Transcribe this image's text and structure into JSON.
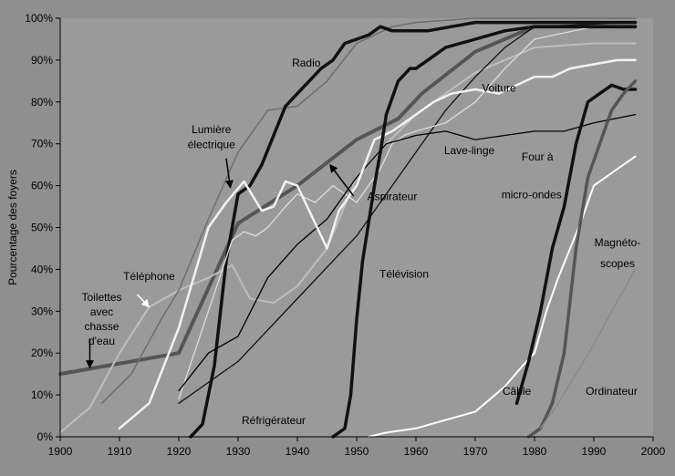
{
  "chart_data": {
    "type": "line",
    "title": "",
    "xlabel": "",
    "ylabel": "Pourcentage des foyers",
    "xlim": [
      1900,
      2000
    ],
    "ylim": [
      0,
      100
    ],
    "x_ticks": [
      "1900",
      "1910",
      "1920",
      "1930",
      "1940",
      "1950",
      "1960",
      "1970",
      "1980",
      "1990",
      "2000"
    ],
    "y_ticks": [
      "0%",
      "10%",
      "20%",
      "30%",
      "40%",
      "50%",
      "60%",
      "70%",
      "80%",
      "90%",
      "100%"
    ],
    "grid": false,
    "legend": "none",
    "series": [
      {
        "name": "Toilettes avec chasse d'eau",
        "color": "#555555",
        "width": 4,
        "points": [
          [
            1900,
            15
          ],
          [
            1920,
            20
          ],
          [
            1930,
            51
          ],
          [
            1940,
            60
          ],
          [
            1950,
            71
          ],
          [
            1957,
            76
          ],
          [
            1961,
            82
          ],
          [
            1970,
            92
          ],
          [
            1980,
            98
          ],
          [
            1997,
            98
          ]
        ]
      },
      {
        "name": "Téléphone",
        "color": "#bdbdbd",
        "width": 2,
        "points": [
          [
            1900,
            1
          ],
          [
            1905,
            7
          ],
          [
            1910,
            20
          ],
          [
            1915,
            31
          ],
          [
            1920,
            35
          ],
          [
            1925,
            38
          ],
          [
            1929,
            41
          ],
          [
            1932,
            33
          ],
          [
            1936,
            32
          ],
          [
            1940,
            36
          ],
          [
            1945,
            45
          ],
          [
            1950,
            62
          ],
          [
            1955,
            70
          ],
          [
            1960,
            77
          ],
          [
            1965,
            82
          ],
          [
            1970,
            87
          ],
          [
            1975,
            90
          ],
          [
            1980,
            93
          ],
          [
            1990,
            94
          ],
          [
            1997,
            94
          ]
        ]
      },
      {
        "name": "Lumière électrique",
        "color": "#6e6e6e",
        "width": 1.5,
        "points": [
          [
            1907,
            8
          ],
          [
            1912,
            15
          ],
          [
            1917,
            28
          ],
          [
            1920,
            35
          ],
          [
            1925,
            52
          ],
          [
            1930,
            68
          ],
          [
            1935,
            78
          ],
          [
            1940,
            79
          ],
          [
            1945,
            85
          ],
          [
            1950,
            94
          ],
          [
            1956,
            98
          ],
          [
            1960,
            99
          ],
          [
            1970,
            100
          ],
          [
            1997,
            100
          ]
        ]
      },
      {
        "name": "Radio",
        "color": "#111111",
        "width": 3.5,
        "points": [
          [
            1922,
            0
          ],
          [
            1924,
            3
          ],
          [
            1926,
            17
          ],
          [
            1928,
            42
          ],
          [
            1930,
            58
          ],
          [
            1932,
            60
          ],
          [
            1934,
            65
          ],
          [
            1936,
            72
          ],
          [
            1938,
            79
          ],
          [
            1940,
            82
          ],
          [
            1942,
            85
          ],
          [
            1944,
            88
          ],
          [
            1946,
            90
          ],
          [
            1948,
            94
          ],
          [
            1950,
            95
          ],
          [
            1952,
            96
          ],
          [
            1954,
            98
          ],
          [
            1956,
            97
          ],
          [
            1958,
            97
          ],
          [
            1962,
            97
          ],
          [
            1966,
            98
          ],
          [
            1970,
            99
          ],
          [
            1997,
            99
          ]
        ]
      },
      {
        "name": "Réfrigérateur",
        "color": "#111111",
        "width": 1.3,
        "points": [
          [
            1920,
            8
          ],
          [
            1930,
            18
          ],
          [
            1940,
            33
          ],
          [
            1950,
            48
          ],
          [
            1955,
            58
          ],
          [
            1960,
            68
          ],
          [
            1965,
            78
          ],
          [
            1970,
            86
          ],
          [
            1975,
            93
          ],
          [
            1980,
            98
          ],
          [
            1997,
            99
          ]
        ]
      },
      {
        "name": "Aspirateur",
        "color": "#dcdcdc",
        "width": 1.3,
        "points": [
          [
            1920,
            9
          ],
          [
            1925,
            30
          ],
          [
            1929,
            47
          ],
          [
            1931,
            49
          ],
          [
            1933,
            48
          ],
          [
            1935,
            50
          ],
          [
            1938,
            55
          ],
          [
            1940,
            58
          ],
          [
            1943,
            56
          ],
          [
            1946,
            60
          ],
          [
            1950,
            56
          ],
          [
            1952,
            60
          ],
          [
            1954,
            64
          ],
          [
            1956,
            70
          ],
          [
            1958,
            72
          ],
          [
            1960,
            73
          ],
          [
            1965,
            75
          ],
          [
            1970,
            80
          ],
          [
            1975,
            88
          ],
          [
            1980,
            95
          ],
          [
            1990,
            98
          ],
          [
            1997,
            98
          ]
        ]
      },
      {
        "name": "Lave-linge",
        "color": "#000000",
        "width": 1.3,
        "points": [
          [
            1920,
            11
          ],
          [
            1925,
            20
          ],
          [
            1930,
            24
          ],
          [
            1935,
            38
          ],
          [
            1940,
            46
          ],
          [
            1945,
            52
          ],
          [
            1950,
            62
          ],
          [
            1955,
            70
          ],
          [
            1960,
            72
          ],
          [
            1965,
            73
          ],
          [
            1970,
            71
          ],
          [
            1975,
            72
          ],
          [
            1980,
            73
          ],
          [
            1985,
            73
          ],
          [
            1990,
            75
          ],
          [
            1997,
            77
          ]
        ]
      },
      {
        "name": "Voiture",
        "color": "#f2f2f2",
        "width": 2.5,
        "points": [
          [
            1910,
            2
          ],
          [
            1915,
            8
          ],
          [
            1920,
            26
          ],
          [
            1925,
            50
          ],
          [
            1928,
            56
          ],
          [
            1931,
            61
          ],
          [
            1934,
            54
          ],
          [
            1936,
            55
          ],
          [
            1938,
            61
          ],
          [
            1940,
            60
          ],
          [
            1942,
            54
          ],
          [
            1945,
            45
          ],
          [
            1947,
            54
          ],
          [
            1950,
            60
          ],
          [
            1953,
            71
          ],
          [
            1956,
            73
          ],
          [
            1958,
            75
          ],
          [
            1960,
            77
          ],
          [
            1963,
            80
          ],
          [
            1966,
            82
          ],
          [
            1970,
            83
          ],
          [
            1974,
            82
          ],
          [
            1977,
            84
          ],
          [
            1980,
            86
          ],
          [
            1983,
            86
          ],
          [
            1986,
            88
          ],
          [
            1990,
            89
          ],
          [
            1994,
            90
          ],
          [
            1997,
            90
          ]
        ]
      },
      {
        "name": "Télévision",
        "color": "#111111",
        "width": 3.5,
        "points": [
          [
            1946,
            0
          ],
          [
            1948,
            2
          ],
          [
            1949,
            10
          ],
          [
            1950,
            28
          ],
          [
            1951,
            42
          ],
          [
            1953,
            60
          ],
          [
            1954,
            68
          ],
          [
            1955,
            77
          ],
          [
            1957,
            85
          ],
          [
            1959,
            88
          ],
          [
            1960,
            88
          ],
          [
            1962,
            90
          ],
          [
            1965,
            93
          ],
          [
            1970,
            95
          ],
          [
            1975,
            97
          ],
          [
            1980,
            98
          ],
          [
            1990,
            98
          ],
          [
            1997,
            98
          ]
        ]
      },
      {
        "name": "Câble",
        "color": "#ffffff",
        "width": 2,
        "points": [
          [
            1952,
            0
          ],
          [
            1955,
            1
          ],
          [
            1960,
            2
          ],
          [
            1965,
            4
          ],
          [
            1970,
            6
          ],
          [
            1975,
            12
          ],
          [
            1978,
            17
          ],
          [
            1980,
            20
          ],
          [
            1982,
            30
          ],
          [
            1984,
            38
          ],
          [
            1986,
            45
          ],
          [
            1988,
            52
          ],
          [
            1990,
            60
          ],
          [
            1992,
            62
          ],
          [
            1995,
            65
          ],
          [
            1997,
            67
          ]
        ]
      },
      {
        "name": "Four à micro-ondes",
        "color": "#111111",
        "width": 3.5,
        "points": [
          [
            1977,
            8
          ],
          [
            1979,
            18
          ],
          [
            1981,
            30
          ],
          [
            1983,
            45
          ],
          [
            1985,
            55
          ],
          [
            1987,
            70
          ],
          [
            1989,
            80
          ],
          [
            1991,
            82
          ],
          [
            1993,
            84
          ],
          [
            1995,
            83
          ],
          [
            1997,
            83
          ]
        ]
      },
      {
        "name": "Magnétoscopes",
        "color": "#555555",
        "width": 3.5,
        "points": [
          [
            1979,
            0
          ],
          [
            1981,
            2
          ],
          [
            1983,
            8
          ],
          [
            1985,
            20
          ],
          [
            1987,
            45
          ],
          [
            1989,
            62
          ],
          [
            1991,
            70
          ],
          [
            1993,
            78
          ],
          [
            1995,
            82
          ],
          [
            1997,
            85
          ]
        ]
      },
      {
        "name": "Ordinateur",
        "color": "#8a8a8a",
        "width": 1.5,
        "points": [
          [
            1981,
            2
          ],
          [
            1984,
            8
          ],
          [
            1987,
            15
          ],
          [
            1990,
            22
          ],
          [
            1993,
            30
          ],
          [
            1995,
            35
          ],
          [
            1997,
            40
          ]
        ]
      }
    ],
    "annotations": [
      {
        "text": "Toilettes",
        "x": 1907,
        "y": 32.5
      },
      {
        "text": "avec",
        "x": 1907,
        "y": 29
      },
      {
        "text": "chasse",
        "x": 1907,
        "y": 25.5
      },
      {
        "text": "d'eau",
        "x": 1907,
        "y": 22
      },
      {
        "text": "Téléphone",
        "x": 1915,
        "y": 37.5
      },
      {
        "text": "Lumière",
        "x": 1925.5,
        "y": 72.5
      },
      {
        "text": "électrique",
        "x": 1925.5,
        "y": 69
      },
      {
        "text": "Radio",
        "x": 1941.5,
        "y": 88.5
      },
      {
        "text": "Réfrigérateur",
        "x": 1936,
        "y": 3
      },
      {
        "text": "Aspirateur",
        "x": 1956,
        "y": 56.5
      },
      {
        "text": "Lave-linge",
        "x": 1969,
        "y": 67.5
      },
      {
        "text": "Voiture",
        "x": 1974,
        "y": 82.5
      },
      {
        "text": "Télévision",
        "x": 1958,
        "y": 38
      },
      {
        "text": "Four à",
        "x": 1980.5,
        "y": 66
      },
      {
        "text": "micro-ondes",
        "x": 1979.5,
        "y": 57
      },
      {
        "text": "Magnéto-",
        "x": 1994,
        "y": 45.5
      },
      {
        "text": "scopes",
        "x": 1994,
        "y": 40.5
      },
      {
        "text": "Câble",
        "x": 1977,
        "y": 10
      },
      {
        "text": "Ordinateur",
        "x": 1993,
        "y": 10
      }
    ],
    "arrows": [
      {
        "from": [
          1905,
          23.5
        ],
        "to": [
          1905,
          16.5
        ],
        "color": "#000000"
      },
      {
        "from": [
          1913,
          34
        ],
        "to": [
          1915,
          31
        ],
        "color": "#ffffff"
      },
      {
        "from": [
          1928,
          66.5
        ],
        "to": [
          1928.7,
          59.5
        ],
        "color": "#000000"
      },
      {
        "from": [
          1949.5,
          57.5
        ],
        "to": [
          1945.5,
          65
        ],
        "color": "#000000"
      }
    ]
  }
}
